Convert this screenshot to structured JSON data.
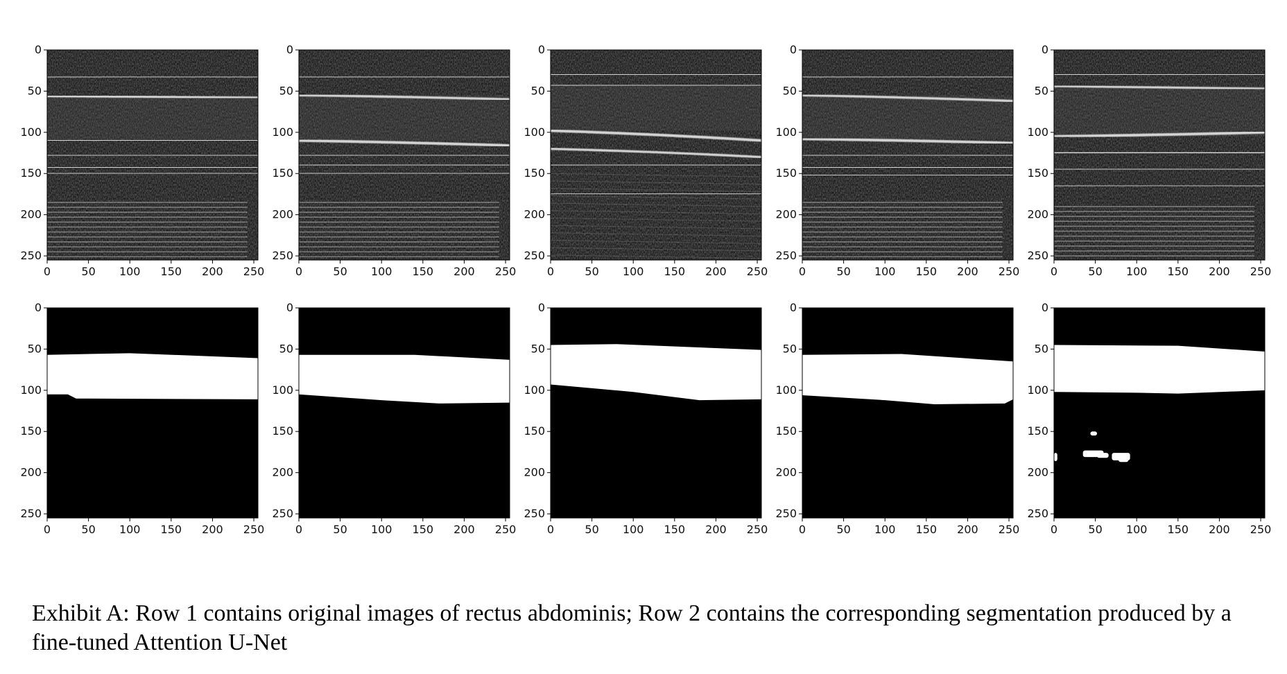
{
  "figure": {
    "rows": [
      {
        "kind": "ultrasound",
        "panels": [
          {
            "bands": [
              {
                "y": 33,
                "w": 1.6
              },
              {
                "y": 56,
                "w": 2.2,
                "slope": 2
              },
              {
                "y": 110,
                "w": 2.6
              },
              {
                "y": 128,
                "w": 1.6
              },
              {
                "y": 143,
                "w": 2.0
              },
              {
                "y": 150,
                "w": 1.4
              }
            ],
            "reverb_start": 185
          },
          {
            "bands": [
              {
                "y": 33,
                "w": 1.6
              },
              {
                "y": 55,
                "w": 2.2,
                "slope": 5
              },
              {
                "y": 110,
                "w": 2.6,
                "slope": 6
              },
              {
                "y": 128,
                "w": 1.6
              },
              {
                "y": 140,
                "w": 2.0
              },
              {
                "y": 150,
                "w": 1.4
              }
            ],
            "reverb_start": 185
          },
          {
            "bands": [
              {
                "y": 30,
                "w": 1.8
              },
              {
                "y": 43,
                "w": 2.0
              },
              {
                "y": 98,
                "w": 2.6,
                "slope": 12
              },
              {
                "y": 120,
                "w": 2.2,
                "slope": 10
              },
              {
                "y": 140,
                "w": 1.8
              },
              {
                "y": 175,
                "w": 1.4
              }
            ],
            "reverb_start": 999
          },
          {
            "bands": [
              {
                "y": 33,
                "w": 1.6
              },
              {
                "y": 55,
                "w": 2.2,
                "slope": 7
              },
              {
                "y": 108,
                "w": 2.6,
                "slope": 5
              },
              {
                "y": 128,
                "w": 1.6
              },
              {
                "y": 143,
                "w": 2.0
              },
              {
                "y": 152,
                "w": 1.4
              }
            ],
            "reverb_start": 185
          },
          {
            "bands": [
              {
                "y": 30,
                "w": 1.8
              },
              {
                "y": 44,
                "w": 2.0,
                "slope": 3
              },
              {
                "y": 105,
                "w": 2.6,
                "slope": -5
              },
              {
                "y": 125,
                "w": 2.0
              },
              {
                "y": 145,
                "w": 1.6
              },
              {
                "y": 165,
                "w": 1.4
              }
            ],
            "reverb_start": 190
          }
        ]
      },
      {
        "kind": "segmentation",
        "panels": [
          {
            "top": [
              [
                0,
                57
              ],
              [
                100,
                55
              ],
              [
                255,
                61
              ]
            ],
            "bottom": [
              [
                0,
                105
              ],
              [
                25,
                105
              ],
              [
                35,
                110
              ],
              [
                255,
                111
              ]
            ],
            "blobs": []
          },
          {
            "top": [
              [
                0,
                57
              ],
              [
                140,
                57
              ],
              [
                255,
                63
              ]
            ],
            "bottom": [
              [
                0,
                105
              ],
              [
                100,
                112
              ],
              [
                170,
                116
              ],
              [
                255,
                115
              ]
            ],
            "blobs": []
          },
          {
            "top": [
              [
                0,
                45
              ],
              [
                80,
                44
              ],
              [
                255,
                51
              ]
            ],
            "bottom": [
              [
                0,
                93
              ],
              [
                100,
                102
              ],
              [
                180,
                112
              ],
              [
                255,
                111
              ]
            ],
            "blobs": []
          },
          {
            "top": [
              [
                0,
                57
              ],
              [
                120,
                56
              ],
              [
                255,
                65
              ]
            ],
            "bottom": [
              [
                0,
                106
              ],
              [
                100,
                112
              ],
              [
                160,
                117
              ],
              [
                245,
                116
              ],
              [
                255,
                111
              ]
            ],
            "blobs": []
          },
          {
            "top": [
              [
                0,
                45
              ],
              [
                150,
                46
              ],
              [
                255,
                53
              ]
            ],
            "bottom": [
              [
                0,
                102
              ],
              [
                100,
                103
              ],
              [
                150,
                104
              ],
              [
                255,
                100
              ]
            ],
            "blobs": [
              [
                44,
                150,
                8,
                5
              ],
              [
                35,
                173,
                25,
                8
              ],
              [
                52,
                176,
                14,
                6
              ],
              [
                70,
                176,
                22,
                9
              ],
              [
                78,
                182,
                12,
                5
              ],
              [
                0,
                176,
                4,
                10
              ]
            ]
          }
        ]
      }
    ],
    "x_ticks": [
      "0",
      "50",
      "100",
      "150",
      "200",
      "250"
    ],
    "y_ticks": [
      "0",
      "50",
      "100",
      "150",
      "200",
      "250"
    ],
    "image_extent": [
      0,
      255
    ]
  },
  "caption": {
    "text": "Exhibit A: Row 1 contains original images of rectus abdominis; Row 2 contains the corresponding segmentation produced by a fine-tuned Attention U-Net"
  }
}
